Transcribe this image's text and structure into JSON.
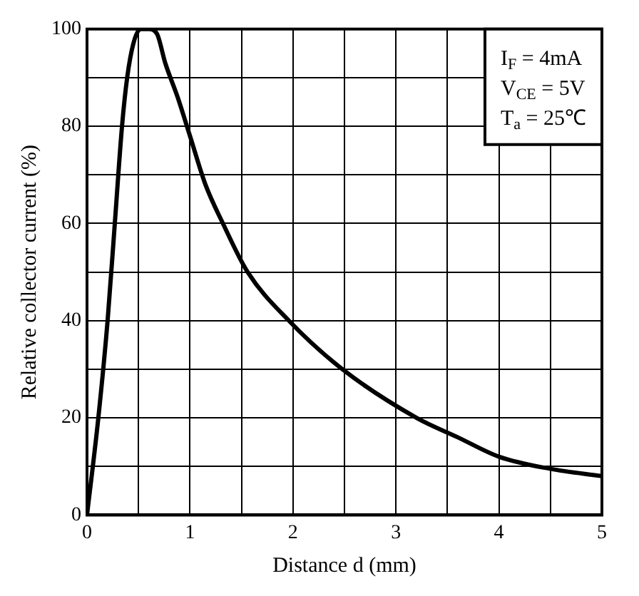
{
  "chart_data": {
    "type": "line",
    "xlabel": "Distance d (mm)",
    "ylabel": "Relative collector current (%)",
    "annotations": [
      "I$_{F}$ = 4mA",
      "V$_{CE}$ = 5V",
      "T$_{a}$ = 25℃"
    ],
    "x": [
      0,
      0.11,
      0.2,
      0.27,
      0.34,
      0.39,
      0.45,
      0.52,
      0.6,
      0.68,
      0.76,
      0.88,
      1.0,
      1.15,
      1.32,
      1.56,
      1.96,
      2.48,
      3.2,
      3.6,
      4.0,
      4.5,
      5.0
    ],
    "series": [
      {
        "color": "#000000",
        "values": [
          0,
          20,
          40,
          60,
          80,
          90,
          97,
          100,
          100,
          99,
          93,
          86,
          78,
          68,
          60,
          50,
          40,
          30,
          20,
          16,
          12,
          9.5,
          8
        ]
      }
    ],
    "xlim": [
      0,
      5
    ],
    "ylim": [
      0,
      100
    ],
    "xticks": [
      0,
      {
        "value": 0.5,
        "label": null
      },
      1,
      {
        "value": 1.5,
        "label": null
      },
      2,
      {
        "value": 2.5,
        "label": null
      },
      3,
      {
        "value": 3.5,
        "label": null
      },
      4,
      {
        "value": 4.5,
        "label": null
      },
      5
    ],
    "yticks": [
      0,
      {
        "value": 10,
        "label": null
      },
      20,
      {
        "value": 30,
        "label": null
      },
      40,
      {
        "value": 50,
        "label": null
      },
      60,
      {
        "value": 70,
        "label": null
      },
      80,
      {
        "value": 90,
        "label": null
      },
      100
    ],
    "grid": true,
    "legend": false,
    "marker": "none",
    "line_style": "solid"
  }
}
